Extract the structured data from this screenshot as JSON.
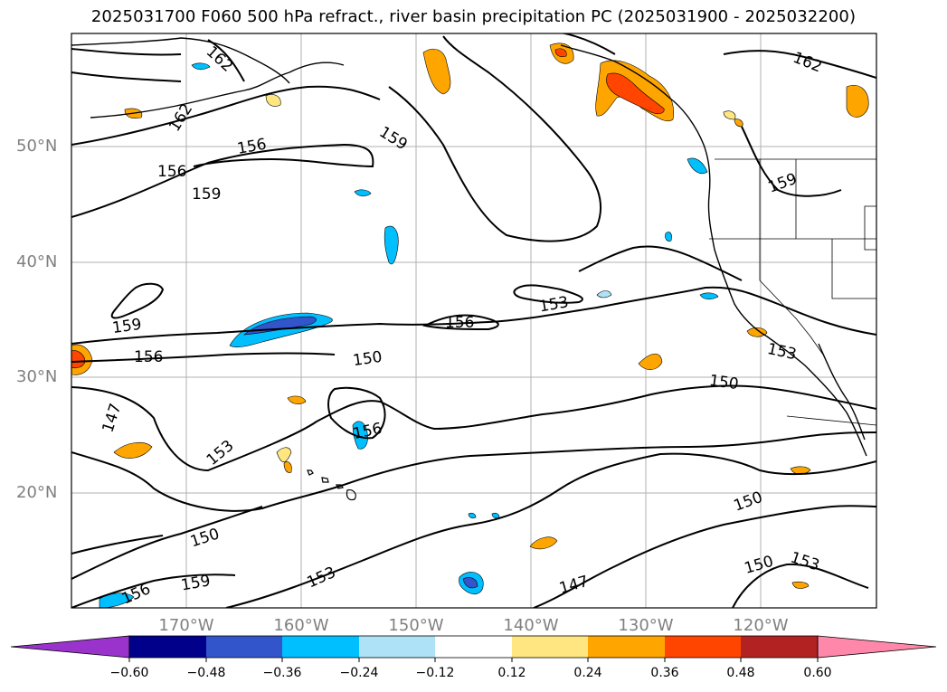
{
  "title": "2025031700 F060 500 hPa refract., river basin precipitation PC (2025031900 - 2025032200)",
  "lat_labels": [
    "50°N",
    "40°N",
    "30°N",
    "20°N"
  ],
  "lon_labels": [
    "170°W",
    "160°W",
    "150°W",
    "140°W",
    "130°W",
    "120°W"
  ],
  "contour_labels": [
    "162",
    "162",
    "156",
    "159",
    "156",
    "159",
    "162",
    "159",
    "153",
    "156",
    "159",
    "156",
    "150",
    "153",
    "150",
    "147",
    "153",
    "156",
    "150",
    "150",
    "153",
    "156",
    "159",
    "153",
    "147",
    "150"
  ],
  "colorbar": {
    "ticks": [
      "−0.60",
      "−0.48",
      "−0.36",
      "−0.24",
      "−0.12",
      "0.12",
      "0.24",
      "0.36",
      "0.48",
      "0.60"
    ],
    "colors": [
      "#9933cc",
      "#00008b",
      "#3355cc",
      "#00bfff",
      "#aee2f7",
      "#ffffff",
      "#ffe680",
      "#ffa500",
      "#ff4500",
      "#b22222",
      "#ff88aa"
    ]
  }
}
